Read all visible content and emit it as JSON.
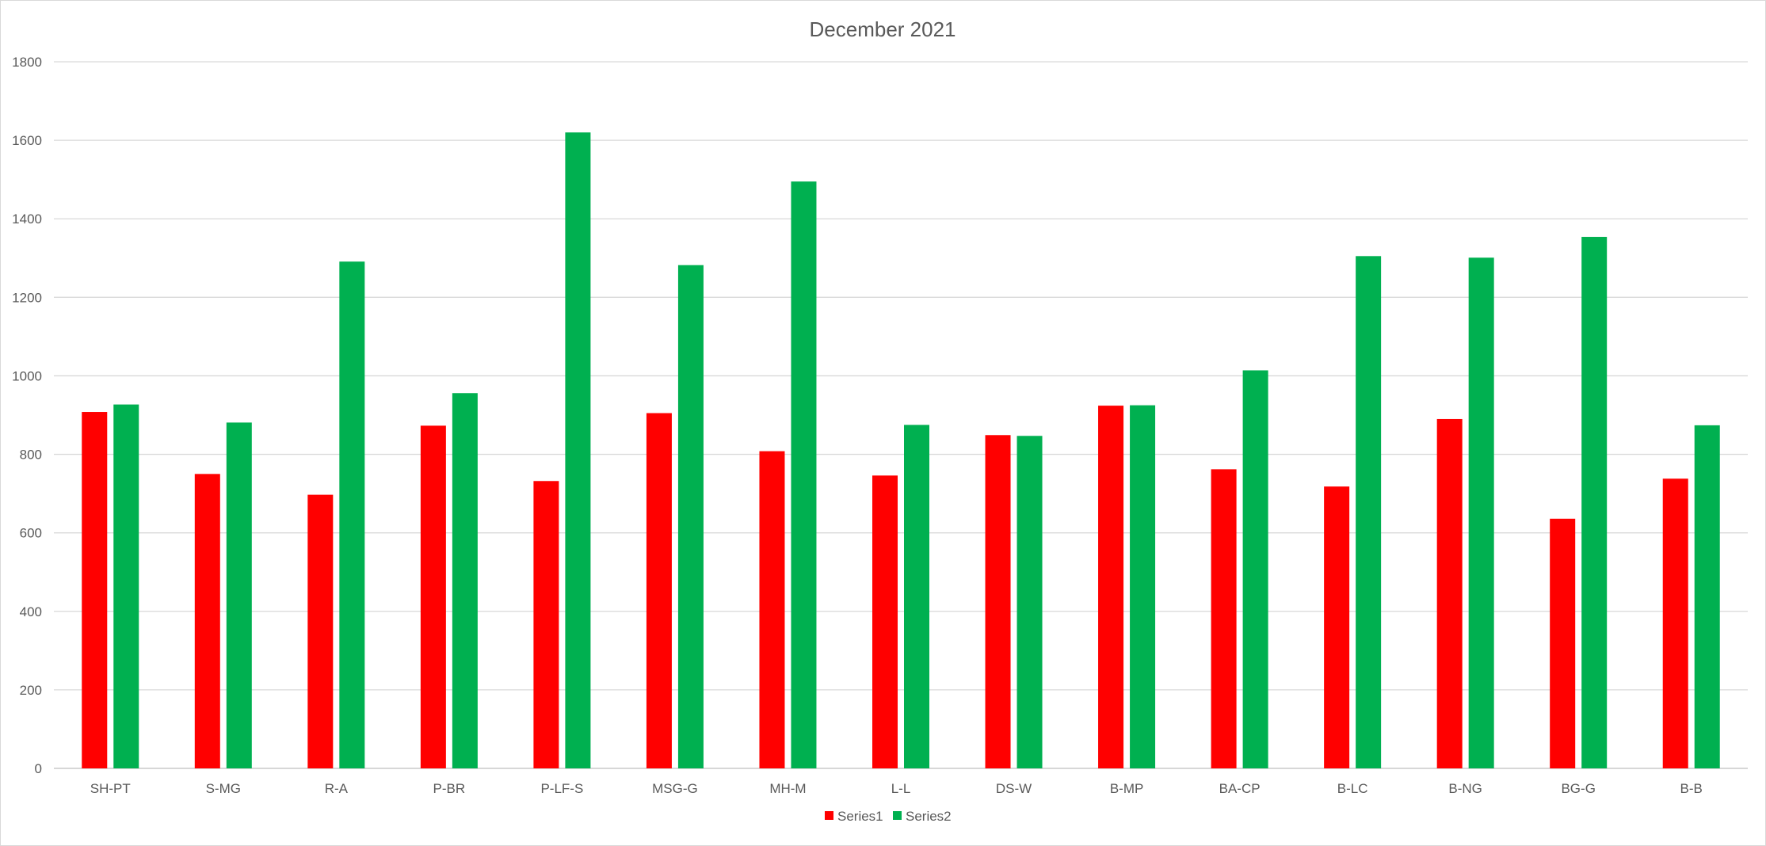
{
  "chart_data": {
    "type": "bar",
    "title": "December 2021",
    "xlabel": "",
    "ylabel": "",
    "ylim": [
      0,
      1800
    ],
    "y_ticks": [
      0,
      200,
      400,
      600,
      800,
      1000,
      1200,
      1400,
      1600,
      1800
    ],
    "grid": true,
    "legend_position": "bottom",
    "categories": [
      "SH-PT",
      "S-MG",
      "R-A",
      "P-BR",
      "P-LF-S",
      "MSG-G",
      "MH-M",
      "L-L",
      "DS-W",
      "B-MP",
      "BA-CP",
      "B-LC",
      "B-NG",
      "BG-G",
      "B-B"
    ],
    "series": [
      {
        "name": "Series1",
        "color": "#ff0000",
        "values": [
          908,
          750,
          697,
          873,
          732,
          905,
          808,
          746,
          849,
          924,
          762,
          718,
          890,
          636,
          738
        ]
      },
      {
        "name": "Series2",
        "color": "#00b050",
        "values": [
          927,
          881,
          1291,
          956,
          1620,
          1282,
          1495,
          875,
          847,
          925,
          1014,
          1305,
          1301,
          1354,
          874
        ]
      }
    ]
  }
}
